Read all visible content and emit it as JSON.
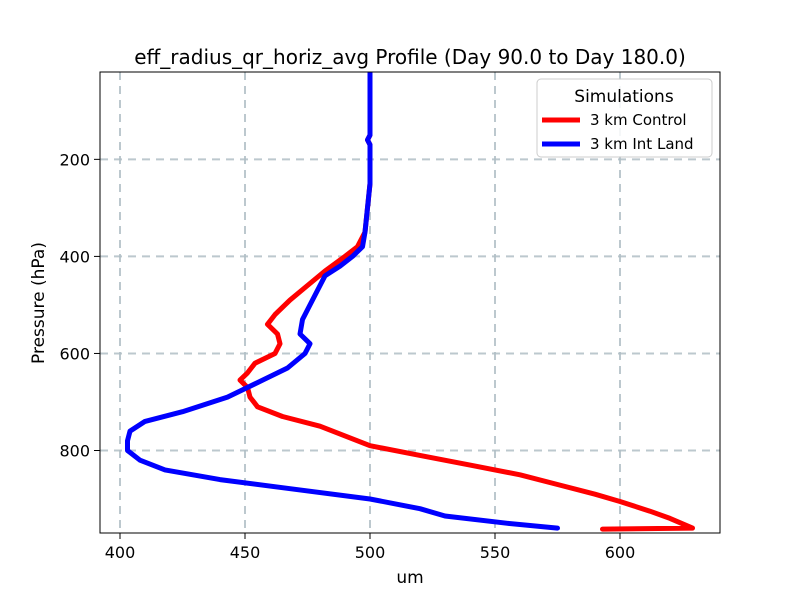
{
  "chart_data": {
    "type": "line",
    "title": "eff_radius_qr_horiz_avg Profile (Day 90.0 to Day 180.0)",
    "xlabel": "um",
    "ylabel": "Pressure (hPa)",
    "xlim": [
      392,
      640
    ],
    "ylim": [
      970,
      20
    ],
    "y_inverted": true,
    "grid": true,
    "xticks": [
      400,
      450,
      500,
      550,
      600
    ],
    "yticks": [
      200,
      400,
      600,
      800
    ],
    "legend": {
      "title": "Simulations",
      "placement": "top-right"
    },
    "series": [
      {
        "name": "3 km Control",
        "color": "#ff0000",
        "points": [
          [
            500,
            20
          ],
          [
            500,
            150
          ],
          [
            499,
            160
          ],
          [
            500,
            170
          ],
          [
            500,
            250
          ],
          [
            499,
            300
          ],
          [
            498,
            350
          ],
          [
            495,
            380
          ],
          [
            490,
            400
          ],
          [
            482,
            430
          ],
          [
            475,
            460
          ],
          [
            468,
            490
          ],
          [
            462,
            520
          ],
          [
            459,
            540
          ],
          [
            463,
            560
          ],
          [
            464,
            580
          ],
          [
            462,
            600
          ],
          [
            454,
            620
          ],
          [
            451,
            640
          ],
          [
            448,
            655
          ],
          [
            451,
            670
          ],
          [
            452,
            690
          ],
          [
            455,
            710
          ],
          [
            465,
            730
          ],
          [
            480,
            750
          ],
          [
            490,
            770
          ],
          [
            500,
            790
          ],
          [
            520,
            810
          ],
          [
            540,
            830
          ],
          [
            560,
            850
          ],
          [
            575,
            870
          ],
          [
            590,
            890
          ],
          [
            600,
            905
          ],
          [
            612,
            925
          ],
          [
            620,
            940
          ],
          [
            629,
            960
          ],
          [
            593,
            962
          ]
        ]
      },
      {
        "name": "3 km Int Land",
        "color": "#0000ff",
        "points": [
          [
            500,
            20
          ],
          [
            500,
            150
          ],
          [
            499,
            160
          ],
          [
            500,
            170
          ],
          [
            500,
            250
          ],
          [
            499,
            300
          ],
          [
            498,
            350
          ],
          [
            497,
            380
          ],
          [
            493,
            400
          ],
          [
            488,
            420
          ],
          [
            482,
            440
          ],
          [
            480,
            460
          ],
          [
            476,
            500
          ],
          [
            473,
            530
          ],
          [
            472,
            560
          ],
          [
            476,
            580
          ],
          [
            474,
            600
          ],
          [
            467,
            630
          ],
          [
            455,
            660
          ],
          [
            443,
            690
          ],
          [
            425,
            720
          ],
          [
            410,
            740
          ],
          [
            404,
            760
          ],
          [
            403,
            780
          ],
          [
            403,
            800
          ],
          [
            408,
            820
          ],
          [
            418,
            840
          ],
          [
            440,
            860
          ],
          [
            470,
            880
          ],
          [
            500,
            900
          ],
          [
            520,
            920
          ],
          [
            530,
            935
          ],
          [
            555,
            950
          ],
          [
            575,
            960
          ]
        ]
      }
    ]
  }
}
